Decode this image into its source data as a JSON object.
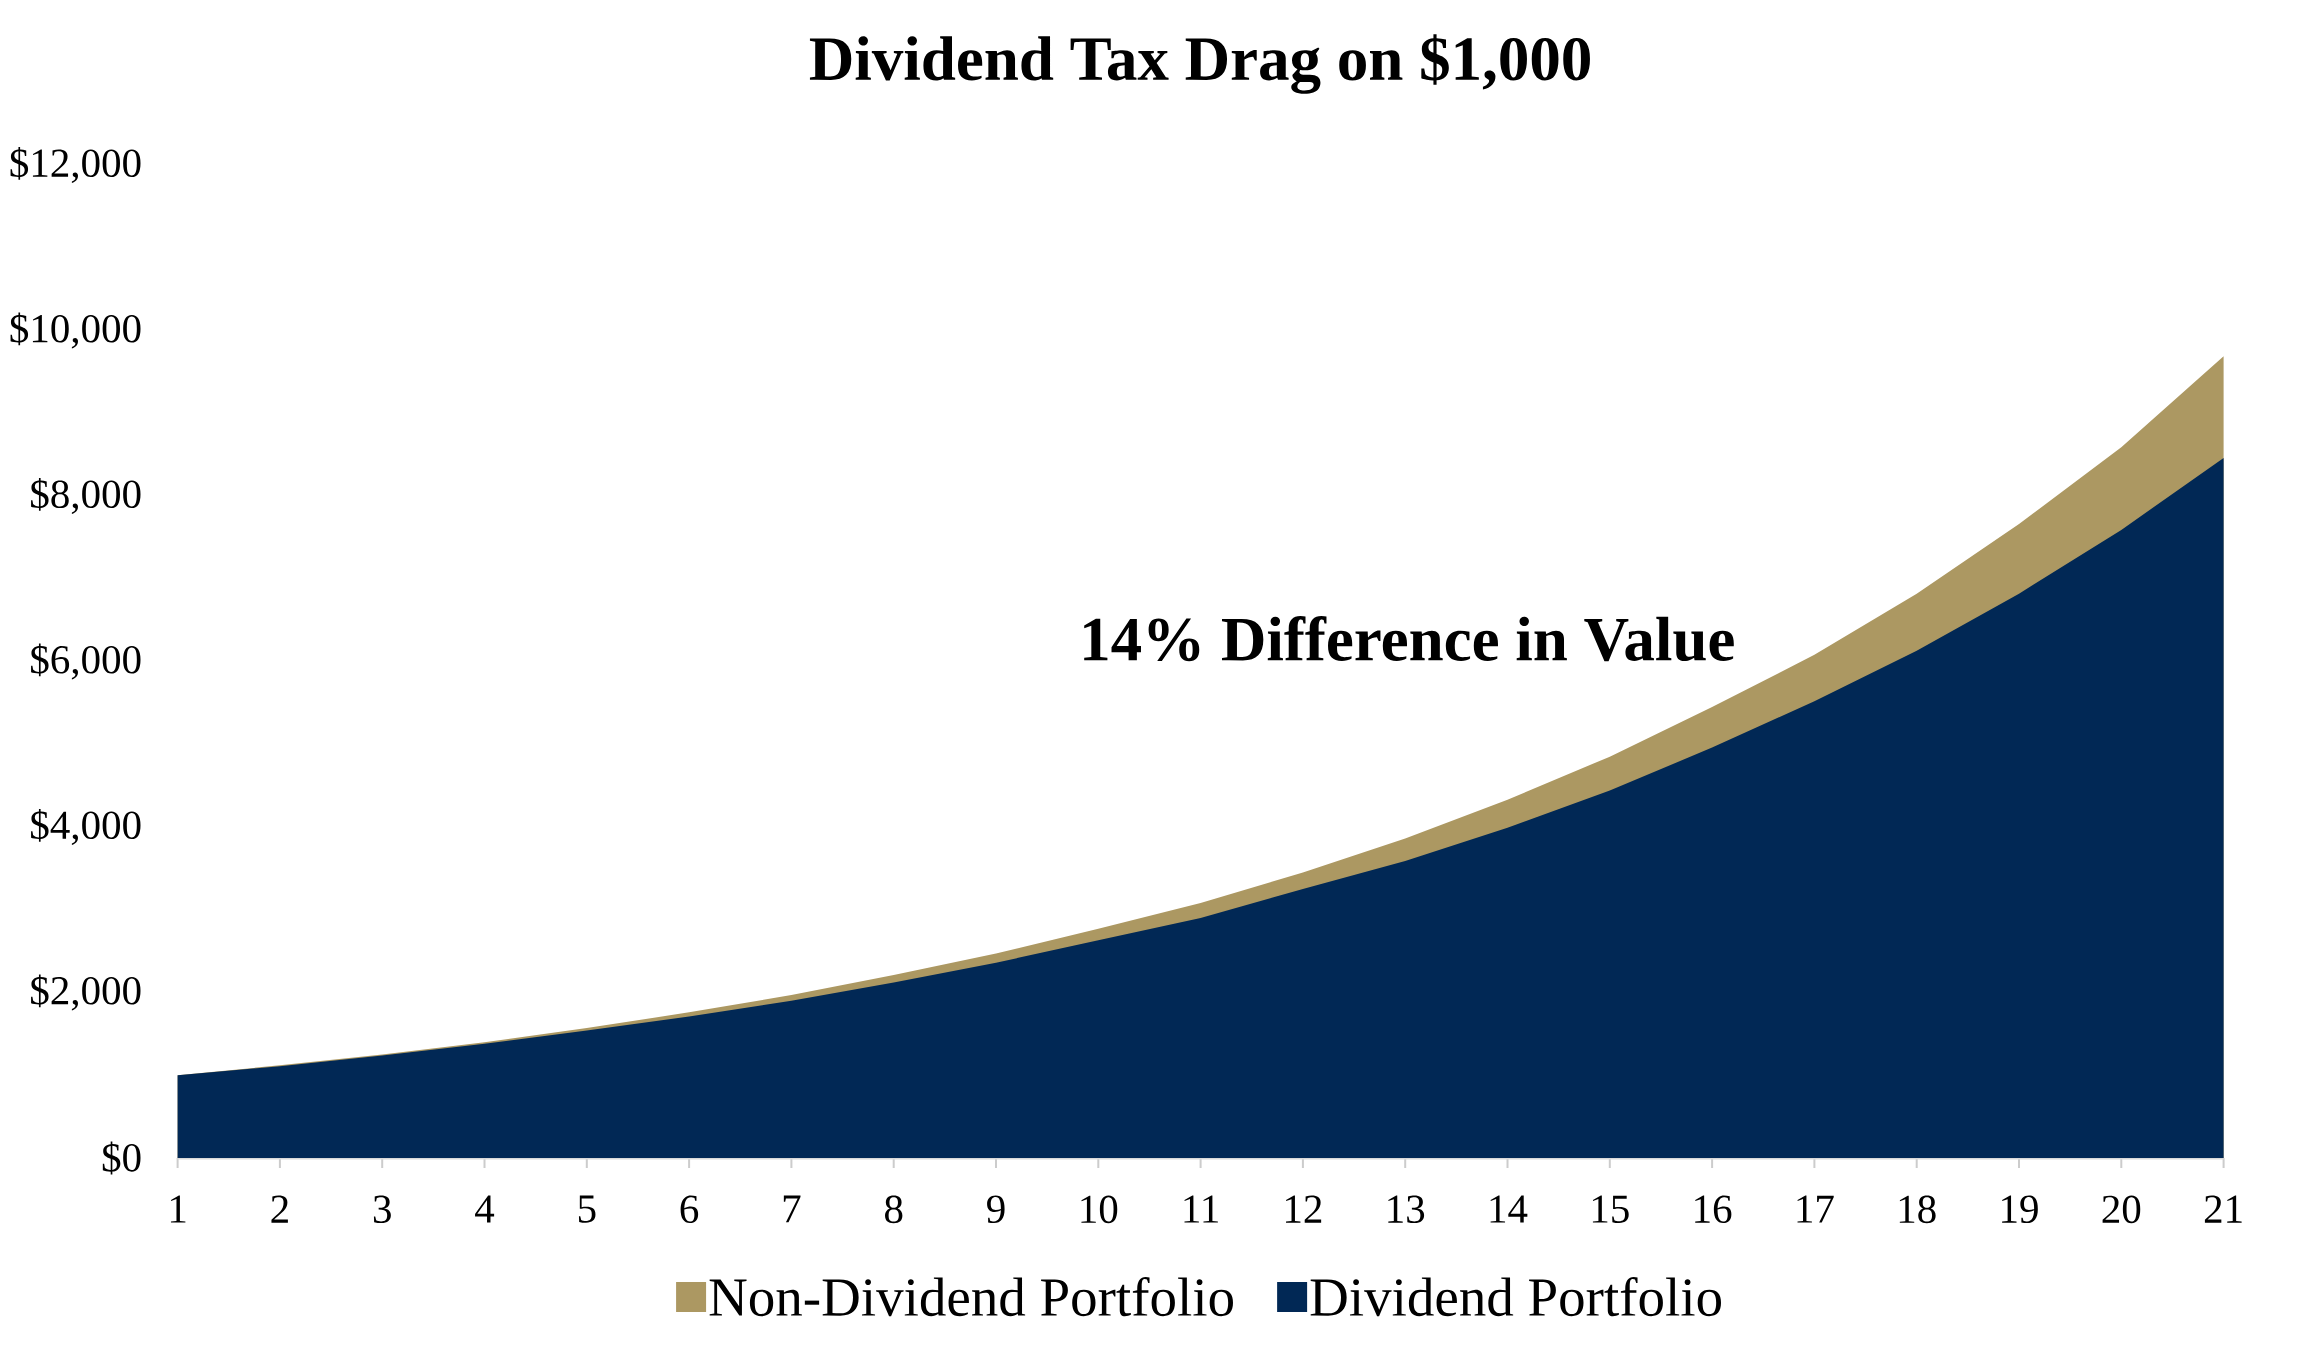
{
  "chart_data": {
    "type": "area",
    "title": "Dividend Tax Drag on $1,000",
    "categories": [
      "1",
      "2",
      "3",
      "4",
      "5",
      "6",
      "7",
      "8",
      "9",
      "10",
      "11",
      "12",
      "13",
      "14",
      "15",
      "16",
      "17",
      "18",
      "19",
      "20",
      "21"
    ],
    "series": [
      {
        "name": "Non-Dividend Portfolio",
        "color": "#ac9862",
        "values": [
          1000,
          1120,
          1250,
          1400,
          1570,
          1760,
          1970,
          2210,
          2470,
          2770,
          3080,
          3450,
          3860,
          4330,
          4850,
          5450,
          6080,
          6820,
          7660,
          8590,
          9690
        ]
      },
      {
        "name": "Dividend Portfolio",
        "color": "#012855",
        "values": [
          1000,
          1110,
          1240,
          1380,
          1540,
          1710,
          1900,
          2120,
          2360,
          2630,
          2900,
          3250,
          3590,
          3990,
          4440,
          4960,
          5520,
          6130,
          6820,
          7590,
          8460
        ]
      }
    ],
    "ylim": [
      0,
      12000
    ],
    "yticks": [
      {
        "value": 0,
        "label": "$0"
      },
      {
        "value": 2000,
        "label": "$2,000"
      },
      {
        "value": 4000,
        "label": "$4,000"
      },
      {
        "value": 6000,
        "label": "$6,000"
      },
      {
        "value": 8000,
        "label": "$8,000"
      },
      {
        "value": 10000,
        "label": "$10,000"
      },
      {
        "value": 12000,
        "label": "$12,000"
      }
    ],
    "annotations": [
      "14% Difference in Value"
    ],
    "legend": "bottom"
  }
}
